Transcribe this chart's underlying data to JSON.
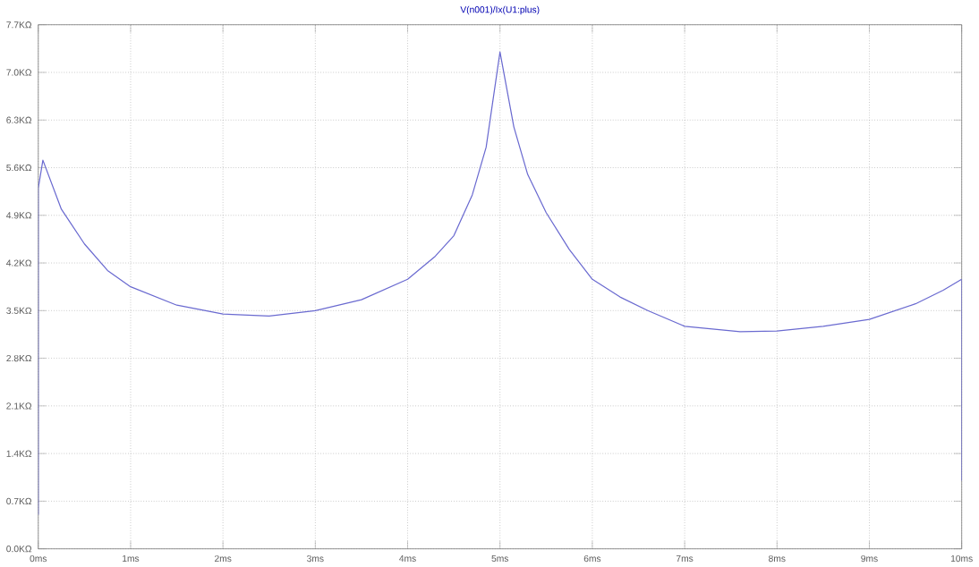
{
  "chart_data": {
    "type": "line",
    "title": "V(n001)/Ix(U1:plus)",
    "x": [
      0,
      0,
      0.05,
      0.25,
      0.5,
      0.75,
      1,
      1.5,
      2,
      2.5,
      3,
      3.5,
      4,
      4.3,
      4.5,
      4.7,
      4.85,
      5,
      5.15,
      5.3,
      5.5,
      5.75,
      6,
      6.3,
      6.6,
      7,
      7.6,
      8,
      8.5,
      9,
      9.5,
      9.8,
      10,
      10
    ],
    "series": [
      {
        "color": "#6a6ad0",
        "values": [
          0.5,
          5.3,
          5.71,
          4.99,
          4.48,
          4.09,
          3.85,
          3.58,
          3.45,
          3.42,
          3.5,
          3.66,
          3.96,
          4.3,
          4.6,
          5.2,
          5.9,
          7.3,
          6.2,
          5.5,
          4.94,
          4.4,
          3.96,
          3.7,
          3.5,
          3.27,
          3.19,
          3.2,
          3.27,
          3.37,
          3.6,
          3.8,
          3.96,
          1.0
        ]
      }
    ],
    "xlim": [
      0,
      10
    ],
    "ylim": [
      0,
      7.7
    ],
    "xticks": [
      {
        "value": 0,
        "label": "0ms"
      },
      {
        "value": 1,
        "label": "1ms"
      },
      {
        "value": 2,
        "label": "2ms"
      },
      {
        "value": 3,
        "label": "3ms"
      },
      {
        "value": 4,
        "label": "4ms"
      },
      {
        "value": 5,
        "label": "5ms"
      },
      {
        "value": 6,
        "label": "6ms"
      },
      {
        "value": 7,
        "label": "7ms"
      },
      {
        "value": 8,
        "label": "8ms"
      },
      {
        "value": 9,
        "label": "9ms"
      },
      {
        "value": 10,
        "label": "10ms"
      }
    ],
    "yticks": [
      {
        "value": 0,
        "label": "0.0KΩ"
      },
      {
        "value": 0.7,
        "label": "0.7KΩ"
      },
      {
        "value": 1.4,
        "label": "1.4KΩ"
      },
      {
        "value": 2.1,
        "label": "2.1KΩ"
      },
      {
        "value": 2.8,
        "label": "2.8KΩ"
      },
      {
        "value": 3.5,
        "label": "3.5KΩ"
      },
      {
        "value": 4.2,
        "label": "4.2KΩ"
      },
      {
        "value": 4.9,
        "label": "4.9KΩ"
      },
      {
        "value": 5.6,
        "label": "5.6KΩ"
      },
      {
        "value": 6.3,
        "label": "6.3KΩ"
      },
      {
        "value": 7.0,
        "label": "7.0KΩ"
      },
      {
        "value": 7.7,
        "label": "7.7KΩ"
      }
    ],
    "grid": true,
    "marker": "none",
    "line_style": "solid"
  }
}
